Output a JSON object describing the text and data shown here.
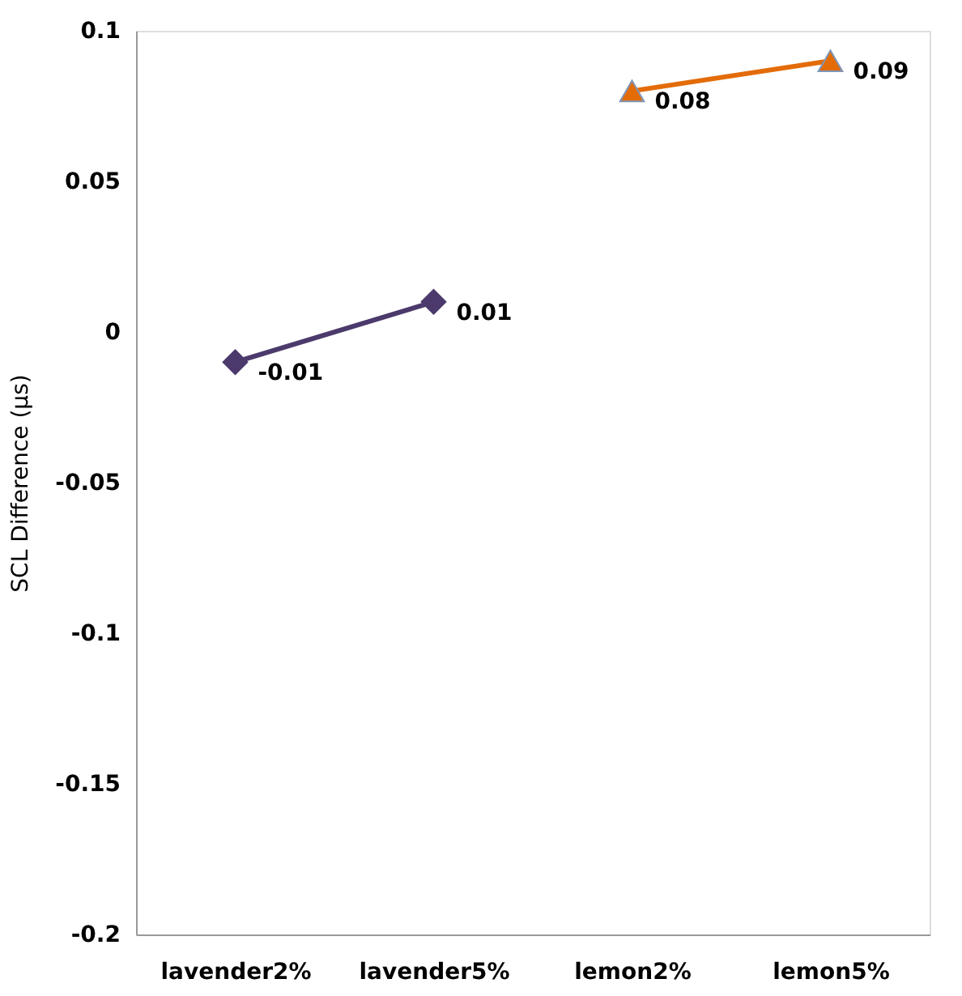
{
  "chart_data": {
    "type": "line",
    "ylabel": "SCL Difference (µs)",
    "categories": [
      "lavender2%",
      "lavender5%",
      "lemon2%",
      "lemon5%"
    ],
    "series": [
      {
        "color": "#4b3a6b",
        "marker": "diamond",
        "values": [
          -0.01,
          0.01,
          null,
          null
        ]
      },
      {
        "color": "#e36c09",
        "marker": "triangle",
        "values": [
          null,
          null,
          0.08,
          0.09
        ]
      }
    ],
    "ylim": [
      -0.2,
      0.1
    ],
    "yticks": [
      -0.2,
      -0.15,
      -0.1,
      -0.05,
      0,
      0.05,
      0.1
    ],
    "grid": false,
    "data_labels": true
  }
}
